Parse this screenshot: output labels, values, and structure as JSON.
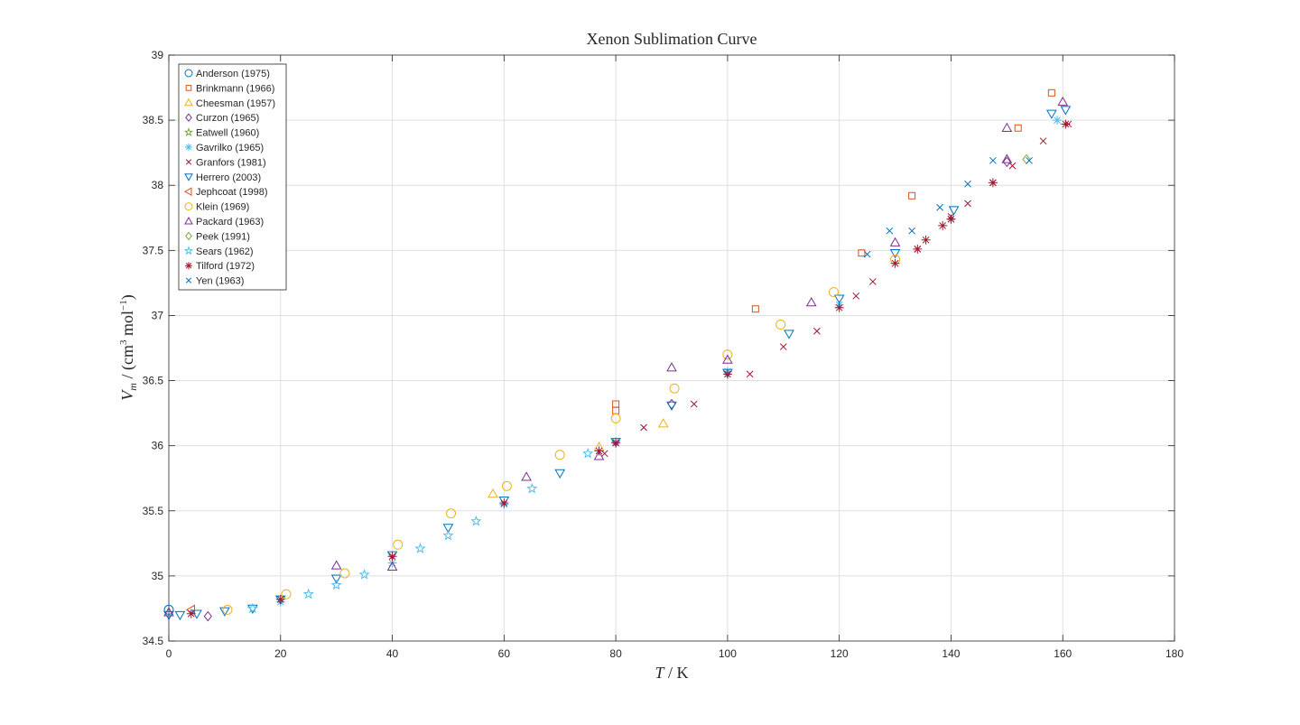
{
  "chart_data": {
    "type": "scatter",
    "title": "Xenon Sublimation Curve",
    "xlabel": "T / K",
    "ylabel": "V_m / (cm^3 mol^-1)",
    "xlim": [
      0,
      180
    ],
    "ylim": [
      34.5,
      39
    ],
    "xticks": [
      0,
      20,
      40,
      60,
      80,
      100,
      120,
      140,
      160,
      180
    ],
    "yticks": [
      34.5,
      35,
      35.5,
      36,
      36.5,
      37,
      37.5,
      38,
      38.5,
      39
    ],
    "xtick_labels": [
      "0",
      "20",
      "40",
      "60",
      "80",
      "100",
      "120",
      "140",
      "160",
      "180"
    ],
    "ytick_labels": [
      "34.5",
      "35",
      "35.5",
      "36",
      "36.5",
      "37",
      "37.5",
      "38",
      "38.5",
      "39"
    ],
    "grid": true,
    "legend_position": "top-left",
    "series": [
      {
        "name": "Anderson (1975)",
        "marker": "circle",
        "color": "#0072BD",
        "x": [
          0
        ],
        "y": [
          34.74
        ]
      },
      {
        "name": "Brinkmann (1966)",
        "marker": "square",
        "color": "#D95319",
        "x": [
          80,
          80,
          105,
          124,
          133,
          152,
          158
        ],
        "y": [
          36.27,
          36.32,
          37.05,
          37.48,
          37.92,
          38.44,
          38.71
        ]
      },
      {
        "name": "Cheesman (1957)",
        "marker": "triangle-up",
        "color": "#EDB120",
        "x": [
          58,
          77,
          88.5
        ],
        "y": [
          35.63,
          35.99,
          36.17
        ]
      },
      {
        "name": "Curzon (1965)",
        "marker": "diamond",
        "color": "#7E2F8E",
        "x": [
          7,
          90,
          150
        ],
        "y": [
          34.69,
          36.32,
          38.18
        ]
      },
      {
        "name": "Eatwell (1960)",
        "marker": "star",
        "color": "#77AC30",
        "x": [],
        "y": []
      },
      {
        "name": "Gavrilko (1965)",
        "marker": "asterisk",
        "color": "#4DBEEE",
        "x": [
          20,
          40,
          60,
          80,
          100,
          120,
          140,
          159
        ],
        "y": [
          34.8,
          35.1,
          35.55,
          36.03,
          36.57,
          37.08,
          37.74,
          38.5
        ]
      },
      {
        "name": "Granfors (1981)",
        "marker": "x",
        "color": "#A2142F",
        "x": [
          78,
          85,
          94,
          104,
          110,
          116,
          123,
          126,
          134,
          140,
          143,
          147.5,
          151,
          156.5,
          161
        ],
        "y": [
          35.94,
          36.14,
          36.32,
          36.55,
          36.76,
          36.88,
          37.15,
          37.26,
          37.51,
          37.76,
          37.86,
          38.02,
          38.15,
          38.34,
          38.47
        ]
      },
      {
        "name": "Herrero (2003)",
        "marker": "triangle-down",
        "color": "#0072BD",
        "x": [
          0,
          2,
          5,
          10,
          15,
          20,
          30,
          40,
          50,
          60,
          70,
          80,
          90,
          100,
          111,
          120,
          130,
          140.5,
          158,
          160.5
        ],
        "y": [
          34.7,
          34.7,
          34.71,
          34.73,
          34.75,
          34.82,
          34.98,
          35.16,
          35.37,
          35.58,
          35.79,
          36.03,
          36.31,
          36.56,
          36.86,
          37.13,
          37.48,
          37.81,
          38.55,
          38.58
        ]
      },
      {
        "name": "Jephcoat (1998)",
        "marker": "triangle-left",
        "color": "#D95319",
        "x": [
          4
        ],
        "y": [
          34.74
        ]
      },
      {
        "name": "Klein (1969)",
        "marker": "circle",
        "color": "#EDB120",
        "x": [
          10.5,
          21,
          31.5,
          41,
          50.5,
          60.5,
          70,
          80,
          90.5,
          100,
          109.5,
          119,
          130
        ],
        "y": [
          34.74,
          34.86,
          35.02,
          35.24,
          35.48,
          35.69,
          35.93,
          36.21,
          36.44,
          36.7,
          36.93,
          37.18,
          37.43
        ]
      },
      {
        "name": "Packard (1963)",
        "marker": "triangle-up",
        "color": "#7E2F8E",
        "x": [
          0,
          30,
          40,
          64,
          77,
          90,
          100,
          115,
          130,
          150,
          150,
          160
        ],
        "y": [
          34.72,
          35.08,
          35.07,
          35.76,
          35.92,
          36.6,
          36.66,
          37.1,
          37.56,
          38.44,
          38.2,
          38.64
        ]
      },
      {
        "name": "Peek (1991)",
        "marker": "diamond",
        "color": "#77AC30",
        "x": [
          153.5
        ],
        "y": [
          38.2
        ]
      },
      {
        "name": "Sears (1962)",
        "marker": "star",
        "color": "#4DBEEE",
        "x": [
          15,
          25,
          30,
          35,
          45,
          50,
          55,
          65,
          75
        ],
        "y": [
          34.75,
          34.86,
          34.93,
          35.01,
          35.21,
          35.31,
          35.42,
          35.67,
          35.94
        ]
      },
      {
        "name": "Tilford (1972)",
        "marker": "asterisk",
        "color": "#A2142F",
        "x": [
          4,
          20,
          40,
          60,
          77,
          80,
          100,
          120,
          130,
          134,
          135.5,
          138.5,
          140,
          147.5,
          160.5
        ],
        "y": [
          34.71,
          34.82,
          35.15,
          35.56,
          35.96,
          36.02,
          36.55,
          37.06,
          37.4,
          37.51,
          37.58,
          37.69,
          37.74,
          38.02,
          38.47
        ]
      },
      {
        "name": "Yen (1963)",
        "marker": "x",
        "color": "#0072BD",
        "x": [
          125,
          129,
          133,
          138,
          143,
          147.5,
          154
        ],
        "y": [
          37.47,
          37.65,
          37.65,
          37.83,
          38.01,
          38.19,
          38.19
        ]
      }
    ]
  }
}
